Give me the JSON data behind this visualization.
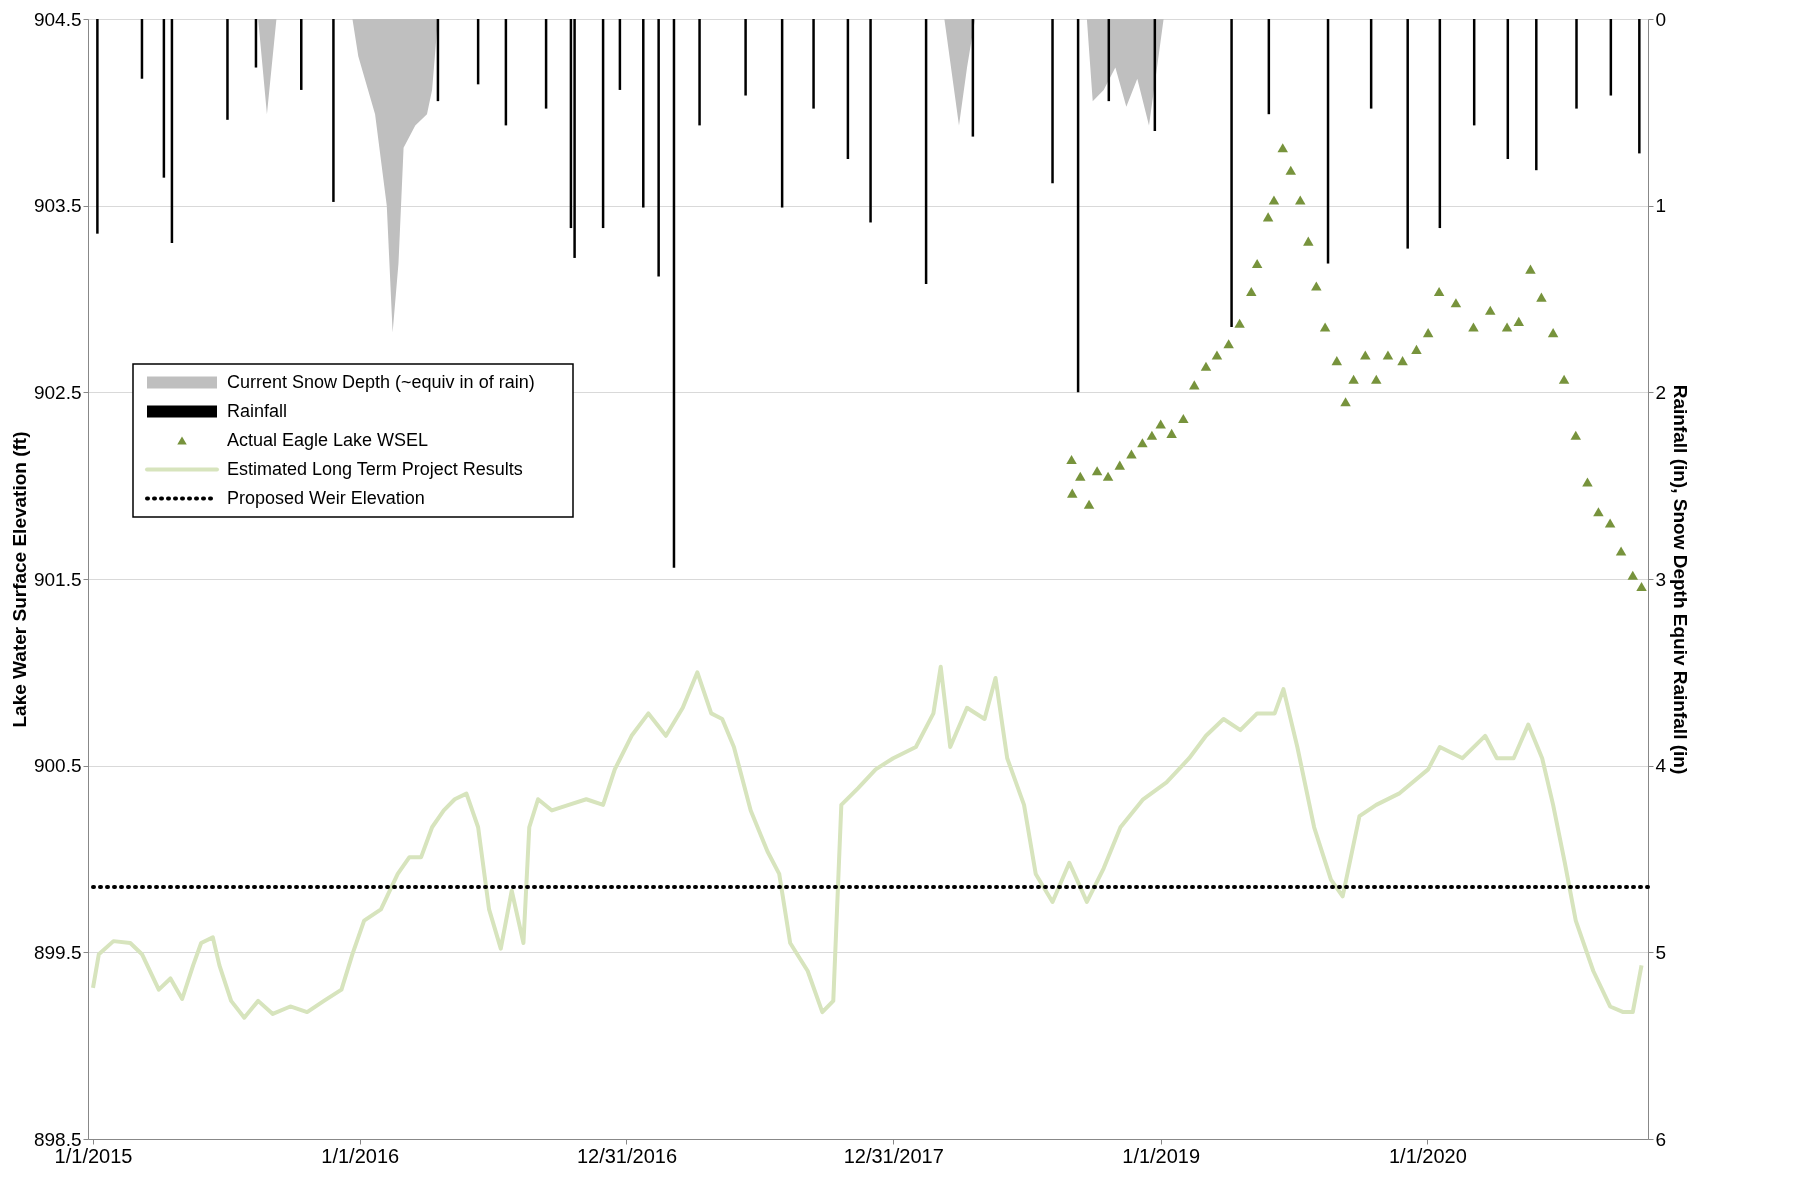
{
  "chart_data": {
    "type": "line",
    "ylabel": "Lake Water Surface Elevation (ft)",
    "y2label": "Rainfall (in), Snow Depth Equiv Rainfall (in)",
    "xlim": [
      "2015-01-01",
      "2020-10-22"
    ],
    "xticks": [
      {
        "value": "2015-01-01",
        "label": "1/1/2015"
      },
      {
        "value": "2016-01-01",
        "label": "1/1/2016"
      },
      {
        "value": "2016-12-31",
        "label": "12/31/2016"
      },
      {
        "value": "2017-12-31",
        "label": "12/31/2017"
      },
      {
        "value": "2019-01-01",
        "label": "1/1/2019"
      },
      {
        "value": "2020-01-01",
        "label": "1/1/2020"
      }
    ],
    "ylim": [
      898.5,
      904.5
    ],
    "yticks": [
      898.5,
      899.5,
      900.5,
      901.5,
      902.5,
      903.5,
      904.5
    ],
    "y2lim": [
      6,
      0
    ],
    "y2ticks": [
      0,
      1,
      2,
      3,
      4,
      5,
      6
    ],
    "grid": "y",
    "legend": "top left",
    "series": [
      {
        "name": "Current Snow Depth (~equiv  in of rain)",
        "type": "area",
        "axis": "y2",
        "color": "#bfbfbf",
        "x": [
          "2015-08-15",
          "2015-08-27",
          "2015-09-09",
          "2015-12-22",
          "2015-12-30",
          "2016-01-22",
          "2016-02-07",
          "2016-02-15",
          "2016-02-23",
          "2016-03-01",
          "2016-03-17",
          "2016-04-02",
          "2016-04-09",
          "2016-04-17",
          "2018-03-11",
          "2018-03-31",
          "2018-04-11",
          "2018-04-22",
          "2018-09-22",
          "2018-09-30",
          "2018-10-15",
          "2018-10-31",
          "2018-11-15",
          "2018-11-30",
          "2018-12-16",
          "2018-12-27",
          "2019-01-05"
        ],
        "values": [
          0,
          0.51,
          0,
          0,
          0.2,
          0.51,
          1.0,
          1.68,
          1.31,
          0.69,
          0.57,
          0.51,
          0.38,
          0,
          0,
          0.57,
          0.26,
          0,
          0,
          0.44,
          0.38,
          0.26,
          0.47,
          0.32,
          0.57,
          0.26,
          0
        ]
      },
      {
        "name": "Rainfall",
        "type": "bar",
        "axis": "y2",
        "color": "#000000",
        "x": [
          "2015-01-07",
          "2015-03-09",
          "2015-04-08",
          "2015-04-19",
          "2015-07-04",
          "2015-08-12",
          "2015-10-13",
          "2015-11-26",
          "2016-04-17",
          "2016-06-11",
          "2016-07-19",
          "2016-09-12",
          "2016-10-16",
          "2016-10-21",
          "2016-11-29",
          "2016-12-22",
          "2017-01-23",
          "2017-02-13",
          "2017-03-06",
          "2017-04-10",
          "2017-06-12",
          "2017-08-01",
          "2017-09-13",
          "2017-10-30",
          "2017-11-30",
          "2018-02-14",
          "2018-04-19",
          "2018-08-06",
          "2018-09-10",
          "2018-10-22",
          "2018-12-24",
          "2019-04-08",
          "2019-05-29",
          "2019-08-18",
          "2019-10-16",
          "2019-12-05",
          "2020-01-18",
          "2020-03-05",
          "2020-04-20",
          "2020-05-29",
          "2020-07-23",
          "2020-09-08",
          "2020-10-17"
        ],
        "values": [
          1.15,
          0.32,
          0.85,
          1.2,
          0.54,
          0.26,
          0.38,
          0.98,
          0.44,
          0.35,
          0.57,
          0.48,
          1.12,
          1.28,
          1.12,
          0.38,
          1.01,
          1.38,
          2.94,
          0.57,
          0.41,
          1.01,
          0.48,
          0.75,
          1.09,
          1.42,
          0.63,
          0.88,
          2.0,
          0.44,
          0.6,
          1.65,
          0.51,
          1.31,
          0.48,
          1.23,
          1.12,
          0.57,
          0.75,
          0.81,
          0.48,
          0.41,
          0.72
        ]
      },
      {
        "name": "Actual Eagle Lake WSEL",
        "type": "scatter",
        "marker": "triangle",
        "color": "#77933c",
        "x": [
          "2018-09-01",
          "2018-09-02",
          "2018-09-13",
          "2018-09-25",
          "2018-10-06",
          "2018-10-21",
          "2018-11-06",
          "2018-11-22",
          "2018-12-07",
          "2018-12-20",
          "2019-01-01",
          "2019-01-16",
          "2019-02-01",
          "2019-02-16",
          "2019-03-04",
          "2019-03-19",
          "2019-04-04",
          "2019-04-19",
          "2019-05-05",
          "2019-05-13",
          "2019-05-28",
          "2019-06-05",
          "2019-06-17",
          "2019-06-28",
          "2019-07-11",
          "2019-07-22",
          "2019-08-02",
          "2019-08-14",
          "2019-08-30",
          "2019-09-11",
          "2019-09-22",
          "2019-10-08",
          "2019-10-23",
          "2019-11-08",
          "2019-11-28",
          "2019-12-17",
          "2020-01-02",
          "2020-01-17",
          "2020-02-09",
          "2020-03-04",
          "2020-03-27",
          "2020-04-19",
          "2020-05-05",
          "2020-05-21",
          "2020-06-05",
          "2020-06-21",
          "2020-07-06",
          "2020-07-22",
          "2020-08-07",
          "2020-08-22",
          "2020-09-07",
          "2020-09-22",
          "2020-10-08",
          "2020-10-20"
        ],
        "values": [
          902.14,
          901.96,
          902.05,
          901.9,
          902.08,
          902.05,
          902.11,
          902.17,
          902.23,
          902.27,
          902.33,
          902.28,
          902.36,
          902.54,
          902.64,
          902.7,
          902.76,
          902.87,
          903.04,
          903.19,
          903.44,
          903.53,
          903.81,
          903.69,
          903.53,
          903.31,
          903.07,
          902.85,
          902.67,
          902.45,
          902.57,
          902.7,
          902.57,
          902.7,
          902.67,
          902.73,
          902.82,
          903.04,
          902.98,
          902.85,
          902.94,
          902.85,
          902.88,
          903.16,
          903.01,
          902.82,
          902.57,
          902.27,
          902.02,
          901.86,
          901.8,
          901.65,
          901.52,
          901.46
        ]
      },
      {
        "name": "Estimated Long Term Project Results",
        "color": "#d7e4bd",
        "x": [
          "2015-01-01",
          "2015-01-09",
          "2015-01-29",
          "2015-02-21",
          "2015-03-09",
          "2015-04-01",
          "2015-04-17",
          "2015-05-03",
          "2015-05-18",
          "2015-05-29",
          "2015-06-14",
          "2015-06-23",
          "2015-07-09",
          "2015-07-27",
          "2015-08-15",
          "2015-09-04",
          "2015-09-28",
          "2015-10-21",
          "2015-11-13",
          "2015-12-07",
          "2015-12-22",
          "2016-01-07",
          "2016-01-30",
          "2016-02-22",
          "2016-03-09",
          "2016-03-25",
          "2016-04-09",
          "2016-04-25",
          "2016-05-10",
          "2016-05-26",
          "2016-06-11",
          "2016-06-26",
          "2016-07-12",
          "2016-07-27",
          "2016-08-12",
          "2016-08-20",
          "2016-09-01",
          "2016-09-20",
          "2016-10-13",
          "2016-11-06",
          "2016-11-29",
          "2016-12-15",
          "2017-01-07",
          "2017-01-30",
          "2017-02-23",
          "2017-03-18",
          "2017-04-07",
          "2017-04-26",
          "2017-05-11",
          "2017-05-27",
          "2017-06-19",
          "2017-07-12",
          "2017-07-28",
          "2017-08-12",
          "2017-09-05",
          "2017-09-25",
          "2017-10-10",
          "2017-10-21",
          "2017-11-13",
          "2017-12-07",
          "2017-12-31",
          "2018-01-31",
          "2018-02-24",
          "2018-03-06",
          "2018-03-19",
          "2018-04-11",
          "2018-05-05",
          "2018-05-20",
          "2018-06-05",
          "2018-06-28",
          "2018-07-14",
          "2018-08-06",
          "2018-08-29",
          "2018-09-22",
          "2018-10-15",
          "2018-11-07",
          "2018-12-08",
          "2019-01-09",
          "2019-02-09",
          "2019-03-04",
          "2019-03-28",
          "2019-04-20",
          "2019-05-13",
          "2019-06-06",
          "2019-06-18",
          "2019-07-07",
          "2019-07-30",
          "2019-08-22",
          "2019-09-07",
          "2019-09-30",
          "2019-10-23",
          "2019-11-23",
          "2020-01-02",
          "2020-01-18",
          "2020-02-18",
          "2020-03-20",
          "2020-04-05",
          "2020-04-28",
          "2020-05-18",
          "2020-06-06",
          "2020-06-21",
          "2020-07-07",
          "2020-07-22",
          "2020-08-15",
          "2020-09-07",
          "2020-09-25",
          "2020-10-08",
          "2020-10-20"
        ],
        "values": [
          899.31,
          899.49,
          899.56,
          899.55,
          899.49,
          899.3,
          899.36,
          899.25,
          899.43,
          899.55,
          899.58,
          899.43,
          899.24,
          899.15,
          899.24,
          899.17,
          899.21,
          899.18,
          899.24,
          899.3,
          899.49,
          899.67,
          899.73,
          899.92,
          900.01,
          900.01,
          900.17,
          900.26,
          900.32,
          900.35,
          900.17,
          899.73,
          899.52,
          899.83,
          899.55,
          900.17,
          900.32,
          900.26,
          900.29,
          900.32,
          900.29,
          900.48,
          900.66,
          900.78,
          900.66,
          900.81,
          901.0,
          900.78,
          900.75,
          900.6,
          900.26,
          900.04,
          899.92,
          899.55,
          899.4,
          899.18,
          899.24,
          900.29,
          900.38,
          900.48,
          900.54,
          900.6,
          900.78,
          901.03,
          900.6,
          900.81,
          900.75,
          900.97,
          900.54,
          900.29,
          899.92,
          899.77,
          899.98,
          899.77,
          899.95,
          900.17,
          900.32,
          900.41,
          900.54,
          900.66,
          900.75,
          900.69,
          900.78,
          900.78,
          900.91,
          900.6,
          900.17,
          899.89,
          899.8,
          900.23,
          900.29,
          900.35,
          900.48,
          900.6,
          900.54,
          900.66,
          900.54,
          900.54,
          900.72,
          900.54,
          900.29,
          899.98,
          899.67,
          899.4,
          899.21,
          899.18,
          899.18,
          899.43
        ]
      }
    ],
    "ref_lines": [
      {
        "axis": "y",
        "value": 899.85,
        "label": "Proposed Weir Elevation",
        "color": "#000000",
        "line_style": "dotted"
      }
    ]
  }
}
